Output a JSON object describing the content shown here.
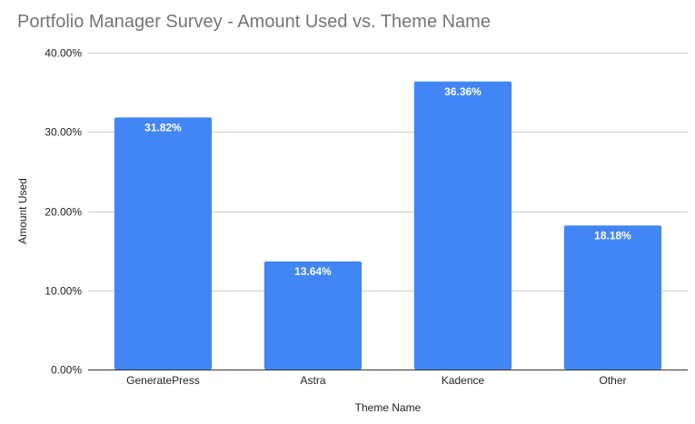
{
  "chart_data": {
    "type": "bar",
    "title": "Portfolio Manager Survey - Amount Used vs. Theme Name",
    "xlabel": "Theme Name",
    "ylabel": "Amount Used",
    "categories": [
      "GeneratePress",
      "Astra",
      "Kadence",
      "Other"
    ],
    "values": [
      31.82,
      13.64,
      36.36,
      18.18
    ],
    "data_labels": [
      "31.82%",
      "13.64%",
      "36.36%",
      "18.18%"
    ],
    "ylim": [
      0,
      40
    ],
    "yticks": [
      0,
      10,
      20,
      30,
      40
    ],
    "ytick_labels": [
      "0.00%",
      "10.00%",
      "20.00%",
      "30.00%",
      "40.00%"
    ],
    "grid": true,
    "legend": "none",
    "bar_color": "#4285f4"
  }
}
